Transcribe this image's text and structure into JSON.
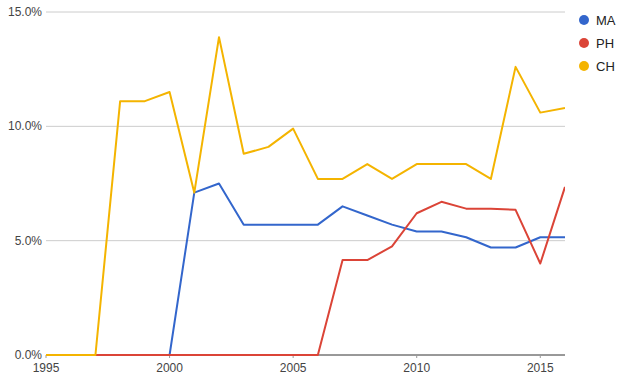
{
  "chart_data": {
    "type": "line",
    "x": [
      1995,
      1996,
      1997,
      1998,
      1999,
      2000,
      2001,
      2002,
      2003,
      2004,
      2005,
      2006,
      2007,
      2008,
      2009,
      2010,
      2011,
      2012,
      2013,
      2014,
      2015,
      2016
    ],
    "series": [
      {
        "name": "MA",
        "color": "#3366cc",
        "values": [
          0,
          0,
          0,
          0,
          0,
          0,
          7.1,
          7.5,
          5.7,
          5.7,
          5.7,
          5.7,
          6.5,
          6.1,
          5.7,
          5.4,
          5.4,
          5.15,
          4.7,
          4.7,
          5.15,
          5.15
        ]
      },
      {
        "name": "PH",
        "color": "#db4437",
        "values": [
          0,
          0,
          0,
          0,
          0,
          0,
          0,
          0,
          0,
          0,
          0,
          0,
          4.15,
          4.15,
          4.75,
          6.2,
          6.7,
          6.4,
          6.4,
          6.35,
          4.0,
          7.35
        ]
      },
      {
        "name": "CH",
        "color": "#f4b400",
        "values": [
          0,
          0,
          0,
          11.1,
          11.1,
          11.5,
          7.1,
          13.9,
          8.8,
          9.1,
          9.9,
          7.7,
          7.7,
          8.35,
          7.7,
          8.35,
          8.35,
          8.35,
          7.7,
          12.6,
          10.6,
          10.8
        ]
      }
    ],
    "xlim": [
      1995,
      2016
    ],
    "xticks": [
      1995,
      2000,
      2005,
      2010,
      2015
    ],
    "ylim": [
      0,
      15
    ],
    "yticks": [
      {
        "value": 0,
        "label": "0.0%"
      },
      {
        "value": 5,
        "label": "5.0%"
      },
      {
        "value": 10,
        "label": "10.0%"
      },
      {
        "value": 15,
        "label": "15.0%"
      }
    ],
    "grid": true,
    "legend": "right"
  }
}
